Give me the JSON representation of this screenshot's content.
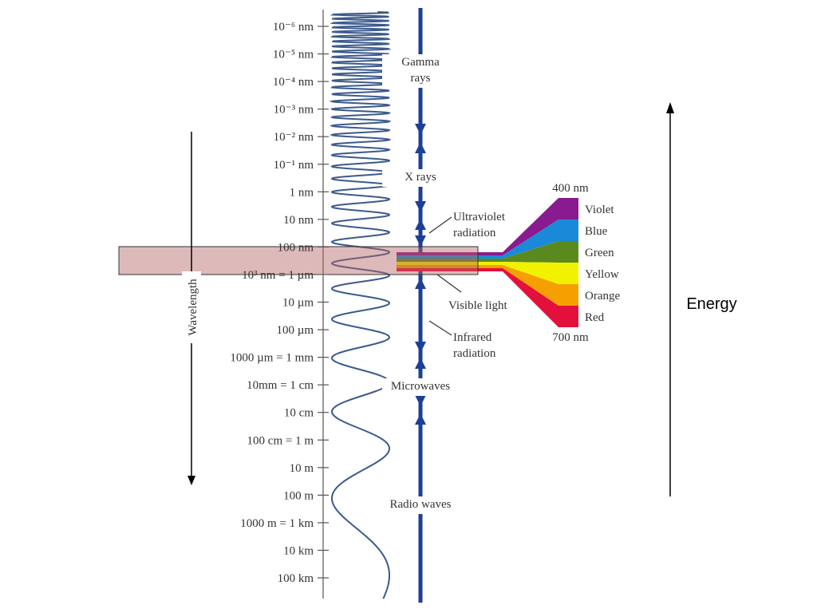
{
  "wavelength_axis": {
    "label": "Wavelength",
    "ticks": [
      "10⁻⁶ nm",
      "10⁻⁵ nm",
      "10⁻⁴ nm",
      "10⁻³ nm",
      "10⁻² nm",
      "10⁻¹ nm",
      "1 nm",
      "10 nm",
      "100 nm",
      "10³ nm = 1 µm",
      "10 µm",
      "100 µm",
      "1000 µm = 1 mm",
      "10mm = 1 cm",
      "10 cm",
      "100 cm = 1 m",
      "10 m",
      "100 m",
      "1000 m = 1 km",
      "10 km",
      "100 km"
    ]
  },
  "bands": [
    {
      "lines": [
        "Gamma",
        "rays"
      ]
    },
    {
      "lines": [
        "X rays"
      ]
    },
    {
      "lines": [
        "Ultraviolet",
        "radiation"
      ]
    },
    {
      "lines": [
        "Visible light"
      ]
    },
    {
      "lines": [
        "Infrared",
        "radiation"
      ]
    },
    {
      "lines": [
        "Microwaves"
      ]
    },
    {
      "lines": [
        "Radio waves"
      ]
    }
  ],
  "visible": {
    "top_label": "400 nm",
    "bottom_label": "700 nm",
    "colors": [
      "Violet",
      "Blue",
      "Green",
      "Yellow",
      "Orange",
      "Red"
    ]
  },
  "energy_label": "Energy"
}
